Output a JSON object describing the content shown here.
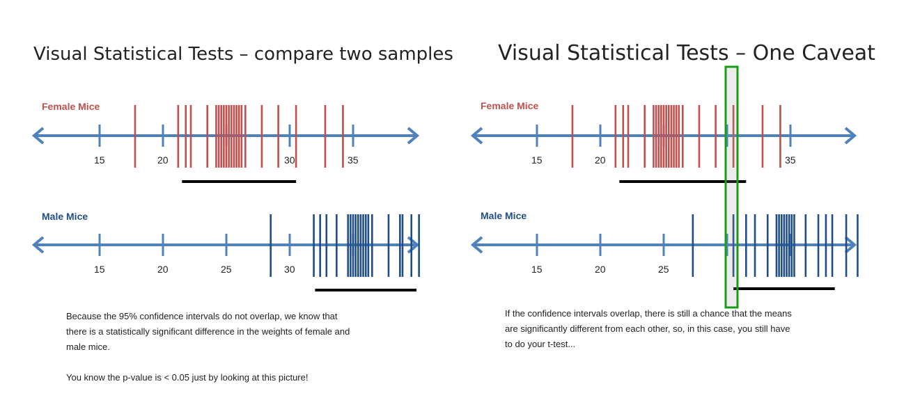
{
  "colors": {
    "axis": "#4f81bd",
    "female": "#c0504d",
    "male": "#1f4e87",
    "ci_bar": "#000000",
    "highlight": "#1a9b1a",
    "title": "#222222"
  },
  "left_panel": {
    "title": "Visual Statistical Tests – compare two samples",
    "female_label": "Female Mice",
    "male_label": "Male Mice",
    "female_ticks": [
      "15",
      "20",
      "30",
      "35"
    ],
    "male_ticks": [
      "15",
      "20",
      "25",
      "30"
    ],
    "caption_lines": [
      "Because the 95% confidence intervals do not overlap, we know that",
      "there is a statistically significant difference in the weights of female and",
      "male mice."
    ],
    "caption_conclusion": "You know the p-value is < 0.05 just by looking at this picture!"
  },
  "right_panel": {
    "title": "Visual Statistical Tests – One Caveat",
    "female_label": "Female Mice",
    "male_label": "Male Mice",
    "female_ticks": [
      "15",
      "20",
      "35"
    ],
    "male_ticks": [
      "15",
      "20",
      "25"
    ],
    "caption_lines": [
      "If the confidence intervals overlap, there is still a chance that the means",
      "are significantly different from each other, so, in this case, you still have",
      "to do your t-test..."
    ]
  },
  "chart_data": [
    {
      "type": "scatter",
      "title": "Visual Statistical Tests – compare two samples",
      "xlim": [
        10,
        40
      ],
      "series": [
        {
          "name": "Female Mice",
          "values": [
            17.8,
            21.2,
            21.8,
            22.2,
            23.5,
            24.2,
            24.4,
            24.6,
            24.8,
            25.0,
            25.2,
            25.4,
            25.6,
            25.8,
            26.0,
            26.2,
            26.5,
            27.8,
            29.1,
            30.5,
            32.8,
            34.2
          ],
          "ci": [
            21.5,
            30.5
          ]
        },
        {
          "name": "Male Mice",
          "values": [
            28.5,
            31.9,
            32.4,
            32.9,
            33.7,
            34.6,
            34.8,
            35.0,
            35.2,
            35.4,
            35.6,
            35.8,
            36.0,
            36.2,
            36.5,
            37.8,
            38.7,
            38.9,
            39.6,
            40.2
          ],
          "ci": [
            32.0,
            40.0
          ]
        }
      ]
    },
    {
      "type": "scatter",
      "title": "Visual Statistical Tests – One Caveat",
      "xlim": [
        10,
        40
      ],
      "series": [
        {
          "name": "Female Mice",
          "values": [
            17.8,
            21.2,
            21.8,
            22.2,
            23.5,
            24.2,
            24.4,
            24.6,
            24.8,
            25.0,
            25.2,
            25.4,
            25.6,
            25.8,
            26.0,
            26.2,
            26.5,
            27.8,
            29.1,
            30.5,
            32.8,
            34.2
          ],
          "ci": [
            21.5,
            31.5
          ]
        },
        {
          "name": "Male Mice",
          "values": [
            27.3,
            30.5,
            31.5,
            32.2,
            33.2,
            33.9,
            34.1,
            34.3,
            34.5,
            34.7,
            34.9,
            35.1,
            35.3,
            36.2,
            37.2,
            37.8,
            38.3,
            39.4,
            40.3
          ],
          "ci": [
            30.5,
            38.5
          ]
        }
      ]
    }
  ]
}
